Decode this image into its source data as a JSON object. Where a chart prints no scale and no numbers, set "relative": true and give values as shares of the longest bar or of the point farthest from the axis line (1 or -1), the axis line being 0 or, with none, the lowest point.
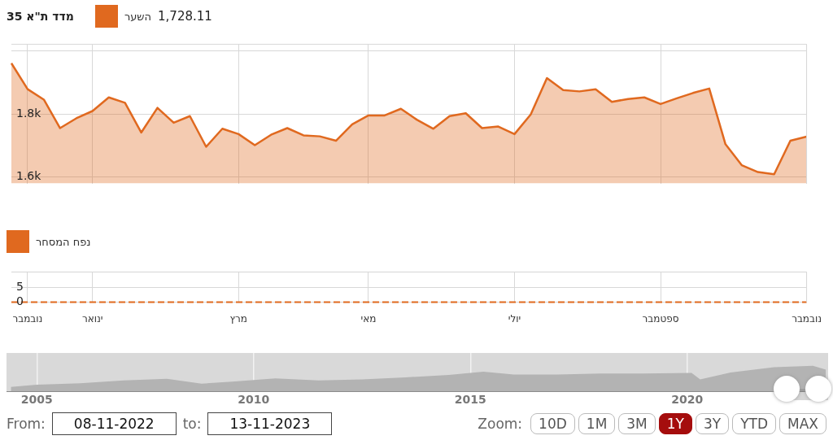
{
  "chart_data": [
    {
      "type": "area",
      "title": "מדד ת\"א 35",
      "categories": [
        null,
        null,
        null,
        null,
        null,
        null,
        null,
        null,
        null,
        null,
        null,
        null,
        null,
        null,
        null,
        null,
        null,
        null,
        null,
        null,
        null,
        null,
        null,
        null,
        null,
        null,
        null,
        null,
        null,
        null,
        null,
        null,
        null,
        null,
        null,
        null,
        null,
        null,
        null,
        null,
        null,
        null,
        null,
        null,
        null,
        null,
        null,
        null,
        null,
        null
      ],
      "series": [
        {
          "name": "השער",
          "color": "#e0691f",
          "values": [
            1960,
            1878,
            1845,
            1755,
            1786,
            1809,
            1852,
            1835,
            1741,
            1819,
            1772,
            1793,
            1696,
            1753,
            1736,
            1701,
            1734,
            1755,
            1732,
            1729,
            1715,
            1767,
            1795,
            1795,
            1816,
            1781,
            1753,
            1793,
            1802,
            1755,
            1760,
            1736,
            1798,
            1913,
            1875,
            1871,
            1878,
            1838,
            1847,
            1852,
            1831,
            1849,
            1866,
            1880,
            1704,
            1638,
            1616,
            1609,
            1715,
            1728
          ]
        }
      ],
      "annotations": [
        "1,728.11"
      ],
      "ylim": [
        1580,
        2020
      ],
      "yticks": [
        {
          "value": 1600,
          "label": "1.6k"
        },
        {
          "value": 1800,
          "label": "1.8k"
        },
        {
          "value": 2000,
          "label": null
        }
      ],
      "grid": true,
      "legend": "top left",
      "tick_labels": "y",
      "marker": "none"
    },
    {
      "type": "line",
      "categories": [
        null,
        "נובמבר",
        null,
        null,
        null,
        "ינואר",
        null,
        null,
        null,
        null,
        null,
        null,
        null,
        null,
        "מרץ",
        null,
        null,
        null,
        null,
        null,
        null,
        null,
        "מאי",
        null,
        null,
        null,
        null,
        null,
        null,
        null,
        null,
        "יולי",
        null,
        null,
        null,
        null,
        null,
        null,
        null,
        null,
        "ספטמבר",
        null,
        null,
        null,
        null,
        null,
        null,
        null,
        null,
        "נובמבר"
      ],
      "series": [
        {
          "name": "נפח המסחר",
          "color": "#e0691f",
          "values": [
            0,
            0,
            0,
            0,
            0,
            0,
            0,
            0,
            0,
            0,
            0,
            0,
            0,
            0,
            0,
            0,
            0,
            0,
            0,
            0,
            0,
            0,
            0,
            0,
            0,
            0,
            0,
            0,
            0,
            0,
            0,
            0,
            0,
            0,
            0,
            0,
            0,
            0,
            0,
            0,
            0,
            0,
            0,
            0,
            0,
            0,
            0,
            0,
            0,
            0
          ]
        }
      ],
      "ylim": [
        0,
        10
      ],
      "yticks": [
        0,
        5,
        {
          "value": 10,
          "label": null
        }
      ],
      "grid": true,
      "legend": "top left",
      "marker": "none",
      "line_style": "dashed"
    },
    {
      "type": "area",
      "relative": true,
      "x": [
        2004.4,
        2005,
        2006,
        2007,
        2008,
        2008.8,
        2009.5,
        2010.5,
        2011.5,
        2012.5,
        2013.5,
        2014.5,
        2015.3,
        2016,
        2017,
        2018,
        2019,
        2020.1,
        2020.3,
        2021,
        2022,
        2022.9,
        2023.2
      ],
      "series": [
        {
          "color": "#b3b3b3",
          "values": [
            0.17,
            0.26,
            0.32,
            0.43,
            0.49,
            0.3,
            0.38,
            0.51,
            0.43,
            0.47,
            0.55,
            0.64,
            0.77,
            0.66,
            0.66,
            0.7,
            0.7,
            0.72,
            0.47,
            0.74,
            0.94,
            1,
            0.85
          ]
        }
      ],
      "xlim": [
        2004.3,
        2023.25
      ],
      "xticks": [
        2005,
        2010,
        2015,
        2020
      ],
      "annotations": [
        "From:",
        "08-11-2022",
        "to:",
        "13-11-2023",
        "Zoom:",
        "10D",
        "1M",
        "3M",
        "1Y",
        "3Y",
        "YTD",
        "MAX"
      ],
      "grid": "x",
      "tick_labels": "x"
    }
  ]
}
